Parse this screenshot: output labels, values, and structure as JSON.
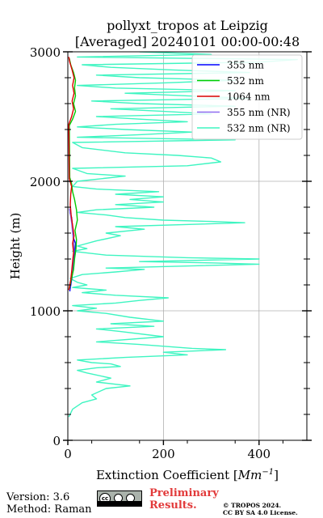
{
  "chart_data": {
    "type": "line",
    "title_line1": "pollyxt_tropos at Leipzig",
    "title_line2": "[Averaged] 20240101 00:00-00:48",
    "xlabel": "Extinction Coefficient [$Mm^{-1}$]",
    "xlabel_main": "Extinction Coefficient [",
    "xlabel_unit": "Mm",
    "xlabel_exp": "−1",
    "xlabel_end": "]",
    "ylabel": "Height (m)",
    "xlim": [
      0,
      500
    ],
    "ylim": [
      0,
      3000
    ],
    "x_ticks": [
      "0",
      "200",
      "400"
    ],
    "y_ticks": [
      "0",
      "1000",
      "2000",
      "3000"
    ],
    "grid": true,
    "legend_position": "top-right",
    "series": [
      {
        "name": "355 nm",
        "color": "#0000ff",
        "points": [
          [
            4,
            1150
          ],
          [
            8,
            1240
          ],
          [
            10,
            1300
          ],
          [
            12,
            1380
          ],
          [
            14,
            1450
          ],
          [
            16,
            1520
          ],
          [
            12,
            1560
          ],
          [
            10,
            1640
          ],
          [
            8,
            1720
          ],
          [
            4,
            1760
          ]
        ]
      },
      {
        "name": "532 nm",
        "color": "#00cc00",
        "points": [
          [
            3,
            1170
          ],
          [
            8,
            1250
          ],
          [
            12,
            1320
          ],
          [
            14,
            1400
          ],
          [
            17,
            1480
          ],
          [
            18,
            1550
          ],
          [
            15,
            1620
          ],
          [
            20,
            1700
          ],
          [
            18,
            1780
          ],
          [
            14,
            1860
          ],
          [
            10,
            1920
          ],
          [
            8,
            1980
          ],
          [
            4,
            2030
          ],
          [
            3,
            2430
          ],
          [
            10,
            2480
          ],
          [
            16,
            2540
          ],
          [
            12,
            2600
          ],
          [
            16,
            2660
          ],
          [
            14,
            2720
          ],
          [
            16,
            2780
          ],
          [
            12,
            2840
          ],
          [
            6,
            2900
          ],
          [
            3,
            2950
          ]
        ]
      },
      {
        "name": "1064 nm",
        "color": "#dd0000",
        "points": [
          [
            2,
            1160
          ],
          [
            6,
            1240
          ],
          [
            8,
            1300
          ],
          [
            10,
            1380
          ],
          [
            12,
            1450
          ],
          [
            10,
            1520
          ],
          [
            13,
            1580
          ],
          [
            10,
            1660
          ],
          [
            7,
            1740
          ],
          [
            5,
            1820
          ],
          [
            6,
            1900
          ],
          [
            8,
            1960
          ],
          [
            3,
            2020
          ],
          [
            2,
            2440
          ],
          [
            8,
            2500
          ],
          [
            12,
            2560
          ],
          [
            9,
            2620
          ],
          [
            13,
            2680
          ],
          [
            10,
            2740
          ],
          [
            13,
            2800
          ],
          [
            9,
            2860
          ],
          [
            4,
            2920
          ],
          [
            2,
            2960
          ]
        ]
      },
      {
        "name": "355 nm (NR)",
        "color": "#8e6cf0",
        "points": [
          [
            3,
            1160
          ],
          [
            7,
            1240
          ],
          [
            9,
            1310
          ],
          [
            11,
            1390
          ],
          [
            13,
            1460
          ],
          [
            12,
            1530
          ],
          [
            10,
            1600
          ],
          [
            8,
            1680
          ],
          [
            5,
            1750
          ],
          [
            3,
            1790
          ]
        ]
      },
      {
        "name": "532 nm (NR)",
        "color": "#3ef5c1",
        "points": [
          [
            2,
            180
          ],
          [
            10,
            240
          ],
          [
            30,
            290
          ],
          [
            60,
            320
          ],
          [
            50,
            350
          ],
          [
            80,
            400
          ],
          [
            130,
            420
          ],
          [
            60,
            450
          ],
          [
            90,
            480
          ],
          [
            40,
            520
          ],
          [
            20,
            540
          ],
          [
            60,
            560
          ],
          [
            110,
            570
          ],
          [
            90,
            590
          ],
          [
            50,
            600
          ],
          [
            20,
            620
          ],
          [
            120,
            640
          ],
          [
            250,
            660
          ],
          [
            200,
            680
          ],
          [
            330,
            700
          ],
          [
            260,
            710
          ],
          [
            150,
            740
          ],
          [
            60,
            760
          ],
          [
            200,
            800
          ],
          [
            110,
            840
          ],
          [
            60,
            860
          ],
          [
            180,
            880
          ],
          [
            90,
            900
          ],
          [
            200,
            920
          ],
          [
            130,
            950
          ],
          [
            80,
            980
          ],
          [
            20,
            1000
          ],
          [
            60,
            1020
          ],
          [
            10,
            1040
          ],
          [
            100,
            1060
          ],
          [
            150,
            1080
          ],
          [
            210,
            1100
          ],
          [
            100,
            1120
          ],
          [
            30,
            1140
          ],
          [
            80,
            1160
          ],
          [
            10,
            1180
          ],
          [
            40,
            1200
          ],
          [
            20,
            1220
          ],
          [
            5,
            1250
          ],
          [
            30,
            1280
          ],
          [
            100,
            1300
          ],
          [
            160,
            1320
          ],
          [
            80,
            1330
          ],
          [
            400,
            1360
          ],
          [
            300,
            1370
          ],
          [
            150,
            1380
          ],
          [
            400,
            1400
          ],
          [
            250,
            1410
          ],
          [
            80,
            1430
          ],
          [
            10,
            1460
          ],
          [
            40,
            1480
          ],
          [
            20,
            1500
          ],
          [
            60,
            1540
          ],
          [
            110,
            1580
          ],
          [
            80,
            1600
          ],
          [
            160,
            1630
          ],
          [
            100,
            1650
          ],
          [
            370,
            1680
          ],
          [
            300,
            1690
          ],
          [
            200,
            1700
          ],
          [
            120,
            1720
          ],
          [
            80,
            1740
          ],
          [
            20,
            1760
          ],
          [
            60,
            1780
          ],
          [
            180,
            1800
          ],
          [
            100,
            1820
          ],
          [
            200,
            1840
          ],
          [
            130,
            1860
          ],
          [
            200,
            1880
          ],
          [
            100,
            1900
          ],
          [
            190,
            1920
          ],
          [
            60,
            1940
          ],
          [
            10,
            1960
          ],
          [
            20,
            2000
          ],
          [
            120,
            2040
          ],
          [
            40,
            2060
          ],
          [
            10,
            2100
          ],
          [
            250,
            2120
          ],
          [
            320,
            2150
          ],
          [
            300,
            2180
          ],
          [
            230,
            2200
          ],
          [
            120,
            2220
          ],
          [
            30,
            2260
          ],
          [
            10,
            2300
          ],
          [
            350,
            2320
          ],
          [
            20,
            2340
          ],
          [
            150,
            2360
          ],
          [
            260,
            2380
          ],
          [
            120,
            2400
          ],
          [
            20,
            2420
          ],
          [
            100,
            2440
          ],
          [
            250,
            2460
          ],
          [
            150,
            2480
          ],
          [
            60,
            2500
          ],
          [
            300,
            2520
          ],
          [
            200,
            2540
          ],
          [
            90,
            2560
          ],
          [
            350,
            2580
          ],
          [
            150,
            2600
          ],
          [
            50,
            2620
          ],
          [
            380,
            2640
          ],
          [
            250,
            2660
          ],
          [
            120,
            2680
          ],
          [
            350,
            2700
          ],
          [
            100,
            2720
          ],
          [
            20,
            2740
          ],
          [
            200,
            2760
          ],
          [
            350,
            2780
          ],
          [
            150,
            2800
          ],
          [
            60,
            2820
          ],
          [
            380,
            2840
          ],
          [
            220,
            2860
          ],
          [
            90,
            2880
          ],
          [
            30,
            2900
          ],
          [
            400,
            2920
          ],
          [
            480,
            2940
          ],
          [
            20,
            2960
          ],
          [
            300,
            2980
          ],
          [
            150,
            3000
          ]
        ]
      }
    ]
  },
  "footer": {
    "version": "Version: 3.6",
    "method": "Method: Raman",
    "preliminary_line1": "Preliminary",
    "preliminary_line2": "Results.",
    "copyright_line1": "© TROPOS 2024.",
    "copyright_line2": "CC BY SA 4.0 License."
  }
}
